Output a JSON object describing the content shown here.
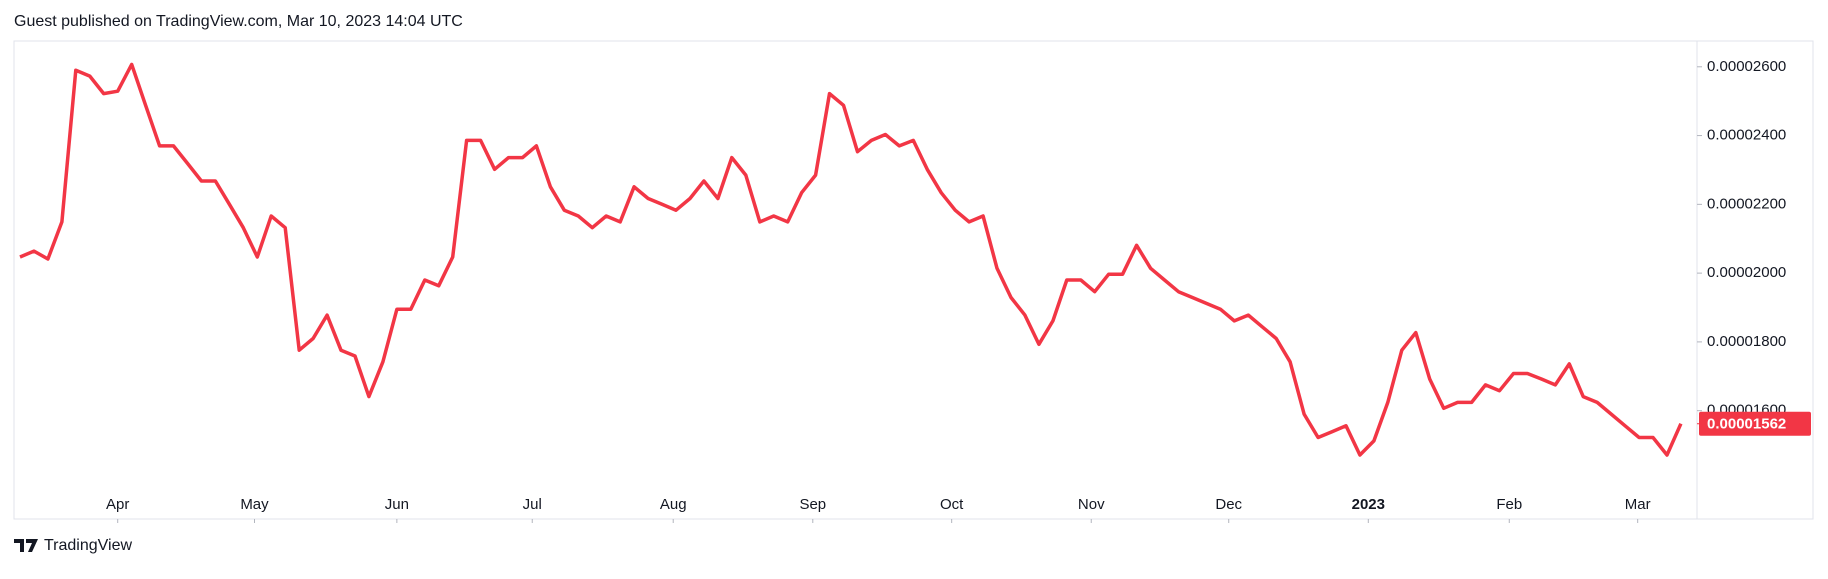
{
  "header": "Guest published on TradingView.com, Mar 10, 2023 14:04 UTC",
  "footer": "TradingView",
  "chart_data": {
    "type": "line",
    "series": [
      {
        "color": "#f23645",
        "values": [
          2.047e-05,
          2.064e-05,
          2.041e-05,
          2.149e-05,
          2.59e-05,
          2.573e-05,
          2.522e-05,
          2.529e-05,
          2.607e-05,
          2.488e-05,
          2.37e-05,
          2.37e-05,
          2.319e-05,
          2.268e-05,
          2.268e-05,
          2.2e-05,
          2.132e-05,
          2.047e-05,
          2.166e-05,
          2.132e-05,
          1.776e-05,
          1.81e-05,
          1.878e-05,
          1.776e-05,
          1.759e-05,
          1.641e-05,
          1.742e-05,
          1.895e-05,
          1.895e-05,
          1.98e-05,
          1.963e-05,
          2.047e-05,
          2.386e-05,
          2.386e-05,
          2.302e-05,
          2.336e-05,
          2.336e-05,
          2.37e-05,
          2.251e-05,
          2.183e-05,
          2.166e-05,
          2.132e-05,
          2.166e-05,
          2.149e-05,
          2.251e-05,
          2.217e-05,
          2.2e-05,
          2.183e-05,
          2.217e-05,
          2.268e-05,
          2.217e-05,
          2.336e-05,
          2.285e-05,
          2.149e-05,
          2.166e-05,
          2.149e-05,
          2.234e-05,
          2.285e-05,
          2.522e-05,
          2.488e-05,
          2.353e-05,
          2.386e-05,
          2.403e-05,
          2.37e-05,
          2.386e-05,
          2.302e-05,
          2.234e-05,
          2.183e-05,
          2.149e-05,
          2.166e-05,
          2.014e-05,
          1.929e-05,
          1.878e-05,
          1.793e-05,
          1.861e-05,
          1.98e-05,
          1.98e-05,
          1.946e-05,
          1.997e-05,
          1.997e-05,
          2.081e-05,
          2.014e-05,
          1.98e-05,
          1.946e-05,
          1.929e-05,
          1.912e-05,
          1.895e-05,
          1.861e-05,
          1.878e-05,
          1.844e-05,
          1.81e-05,
          1.742e-05,
          1.59e-05,
          1.522e-05,
          1.539e-05,
          1.556e-05,
          1.471e-05,
          1.512e-05,
          1.624e-05,
          1.776e-05,
          1.827e-05,
          1.692e-05,
          1.607e-05,
          1.624e-05,
          1.624e-05,
          1.675e-05,
          1.658e-05,
          1.708e-05,
          1.708e-05,
          1.692e-05,
          1.675e-05,
          1.736e-05,
          1.641e-05,
          1.624e-05,
          1.59e-05,
          1.556e-05,
          1.522e-05,
          1.522e-05,
          1.471e-05,
          1.562e-05
        ]
      }
    ],
    "xlim": [
      -0.43,
      120.15
    ],
    "xticks": [
      {
        "value": 7.0,
        "label": "Apr"
      },
      {
        "value": 16.8,
        "label": "May"
      },
      {
        "value": 27.0,
        "label": "Jun"
      },
      {
        "value": 36.7,
        "label": "Jul"
      },
      {
        "value": 46.8,
        "label": "Aug"
      },
      {
        "value": 56.8,
        "label": "Sep"
      },
      {
        "value": 66.75,
        "label": "Oct"
      },
      {
        "value": 76.75,
        "label": "Nov"
      },
      {
        "value": 86.6,
        "label": "Dec"
      },
      {
        "value": 96.6,
        "label": "2023"
      },
      {
        "value": 106.7,
        "label": "Feb"
      },
      {
        "value": 115.9,
        "label": "Mar"
      }
    ],
    "ylim": [
      1.285e-05,
      2.675e-05
    ],
    "yticks": [
      {
        "value": 1.6e-05,
        "label": "0.00001600"
      },
      {
        "value": 1.8e-05,
        "label": "0.00001800"
      },
      {
        "value": 2e-05,
        "label": "0.00002000"
      },
      {
        "value": 2.2e-05,
        "label": "0.00002200"
      },
      {
        "value": 2.4e-05,
        "label": "0.00002400"
      },
      {
        "value": 2.6e-05,
        "label": "0.00002600"
      }
    ],
    "grid": false
  }
}
